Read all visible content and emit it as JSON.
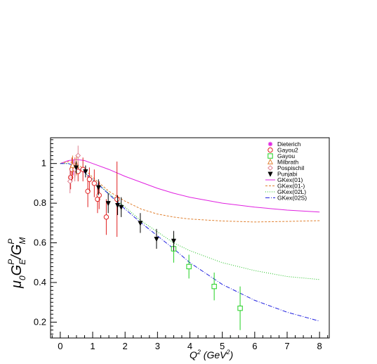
{
  "chart_data": {
    "type": "scatter",
    "xlabel": "Q",
    "xlabel_sup": "2",
    "xlabel_unit_prefix": " (GeV",
    "xlabel_unit_sup": "2",
    "xlabel_unit_suffix": ")",
    "ylabel_mu": "μ",
    "ylabel_mu_sub": "0",
    "ylabel_g1": "G",
    "ylabel_g1_sup": "P",
    "ylabel_g1_sub": "E",
    "ylabel_slash": "/G",
    "ylabel_g2_sup": "P",
    "ylabel_g2_sub": "M",
    "xlim": [
      -0.3,
      8.3
    ],
    "ylim": [
      0.12,
      1.13
    ],
    "x_ticks": [
      0,
      1,
      2,
      3,
      4,
      5,
      6,
      7,
      8
    ],
    "y_ticks": [
      0.2,
      0.4,
      0.6,
      0.8,
      1.0
    ],
    "y_tick_labels": [
      "0.2",
      "0.4",
      "0.6",
      "0.8",
      "1"
    ],
    "grid": false,
    "legend_position": "top-right",
    "series": [
      {
        "name": "Dieterich",
        "marker": "star",
        "color": "#e020e0",
        "points": [
          {
            "x": 0.4,
            "y": 0.98,
            "err": 0.04
          }
        ]
      },
      {
        "name": "Gayou2",
        "marker": "circle-open",
        "color": "#e02020",
        "points": [
          {
            "x": 0.32,
            "y": 0.93,
            "err": 0.06
          },
          {
            "x": 0.36,
            "y": 0.97,
            "err": 0.06
          },
          {
            "x": 0.45,
            "y": 0.98,
            "err": 0.05
          },
          {
            "x": 0.55,
            "y": 0.96,
            "err": 0.05
          },
          {
            "x": 0.7,
            "y": 0.97,
            "err": 0.06
          },
          {
            "x": 0.85,
            "y": 0.86,
            "err": 0.08
          },
          {
            "x": 0.9,
            "y": 0.92,
            "err": 0.06
          },
          {
            "x": 1.05,
            "y": 0.9,
            "err": 0.07
          },
          {
            "x": 1.15,
            "y": 0.82,
            "err": 0.07
          },
          {
            "x": 1.2,
            "y": 0.84,
            "err": 0.07
          },
          {
            "x": 1.42,
            "y": 0.73,
            "err": 0.09
          },
          {
            "x": 1.75,
            "y": 0.82,
            "err": 0.19
          }
        ]
      },
      {
        "name": "Gayou",
        "marker": "square-open",
        "color": "#20d020",
        "points": [
          {
            "x": 3.5,
            "y": 0.57,
            "err": 0.07
          },
          {
            "x": 3.97,
            "y": 0.48,
            "err": 0.06
          },
          {
            "x": 4.75,
            "y": 0.38,
            "err": 0.07
          },
          {
            "x": 5.55,
            "y": 0.27,
            "err": 0.11
          }
        ]
      },
      {
        "name": "Milbrath",
        "marker": "triangle-open",
        "color": "#e08030",
        "points": [
          {
            "x": 0.38,
            "y": 0.99,
            "err": 0.05
          },
          {
            "x": 0.5,
            "y": 0.99,
            "err": 0.05
          }
        ]
      },
      {
        "name": "Pospischil",
        "marker": "diamond-open",
        "color": "#e08090",
        "points": [
          {
            "x": 0.3,
            "y": 0.91,
            "err": 0.06
          },
          {
            "x": 0.45,
            "y": 0.97,
            "err": 0.06
          },
          {
            "x": 0.55,
            "y": 1.04,
            "err": 0.05
          }
        ]
      },
      {
        "name": "Punjabi",
        "marker": "triangle-down-filled",
        "color": "#000000",
        "points": [
          {
            "x": 0.49,
            "y": 0.98,
            "err": 0.03
          },
          {
            "x": 0.78,
            "y": 0.96,
            "err": 0.03
          },
          {
            "x": 1.18,
            "y": 0.88,
            "err": 0.04
          },
          {
            "x": 1.48,
            "y": 0.8,
            "err": 0.05
          },
          {
            "x": 1.77,
            "y": 0.79,
            "err": 0.05
          },
          {
            "x": 1.88,
            "y": 0.78,
            "err": 0.05
          },
          {
            "x": 2.47,
            "y": 0.7,
            "err": 0.05
          },
          {
            "x": 2.97,
            "y": 0.62,
            "err": 0.05
          },
          {
            "x": 3.5,
            "y": 0.61,
            "err": 0.05
          }
        ]
      }
    ],
    "curves": [
      {
        "name": "GKex(01)",
        "color": "#e020e0",
        "dash": "",
        "points": [
          [
            0,
            1.0
          ],
          [
            0.25,
            1.015
          ],
          [
            0.5,
            1.02
          ],
          [
            0.75,
            1.015
          ],
          [
            1,
            1.0
          ],
          [
            1.5,
            0.97
          ],
          [
            2,
            0.935
          ],
          [
            2.5,
            0.905
          ],
          [
            3,
            0.875
          ],
          [
            3.5,
            0.85
          ],
          [
            4,
            0.83
          ],
          [
            5,
            0.8
          ],
          [
            6,
            0.78
          ],
          [
            7,
            0.765
          ],
          [
            8,
            0.755
          ]
        ]
      },
      {
        "name": "GKex(01-)",
        "color": "#e08030",
        "dash": "3,2",
        "points": [
          [
            0,
            1.0
          ],
          [
            0.25,
            1.01
          ],
          [
            0.5,
            1.0
          ],
          [
            0.75,
            0.97
          ],
          [
            1,
            0.93
          ],
          [
            1.5,
            0.86
          ],
          [
            2,
            0.81
          ],
          [
            2.5,
            0.77
          ],
          [
            3,
            0.745
          ],
          [
            3.5,
            0.73
          ],
          [
            4,
            0.72
          ],
          [
            5,
            0.71
          ],
          [
            6,
            0.705
          ],
          [
            7,
            0.708
          ],
          [
            8,
            0.712
          ]
        ]
      },
      {
        "name": "GKex(02L)",
        "color": "#20c020",
        "dash": "1,2",
        "points": [
          [
            0,
            1.0
          ],
          [
            0.25,
            1.0
          ],
          [
            0.5,
            0.985
          ],
          [
            0.75,
            0.955
          ],
          [
            1,
            0.92
          ],
          [
            1.5,
            0.85
          ],
          [
            2,
            0.78
          ],
          [
            2.5,
            0.71
          ],
          [
            3,
            0.655
          ],
          [
            3.5,
            0.6
          ],
          [
            4,
            0.56
          ],
          [
            5,
            0.5
          ],
          [
            6,
            0.46
          ],
          [
            7,
            0.43
          ],
          [
            8,
            0.415
          ]
        ]
      },
      {
        "name": "GKex(02S)",
        "color": "#2020e0",
        "dash": "6,2,1,2",
        "points": [
          [
            0,
            1.0
          ],
          [
            0.25,
            1.0
          ],
          [
            0.5,
            0.985
          ],
          [
            0.75,
            0.955
          ],
          [
            1,
            0.92
          ],
          [
            1.5,
            0.845
          ],
          [
            2,
            0.77
          ],
          [
            2.5,
            0.7
          ],
          [
            3,
            0.635
          ],
          [
            3.5,
            0.57
          ],
          [
            4,
            0.5
          ],
          [
            5,
            0.39
          ],
          [
            6,
            0.31
          ],
          [
            7,
            0.25
          ],
          [
            8,
            0.205
          ]
        ]
      }
    ]
  }
}
